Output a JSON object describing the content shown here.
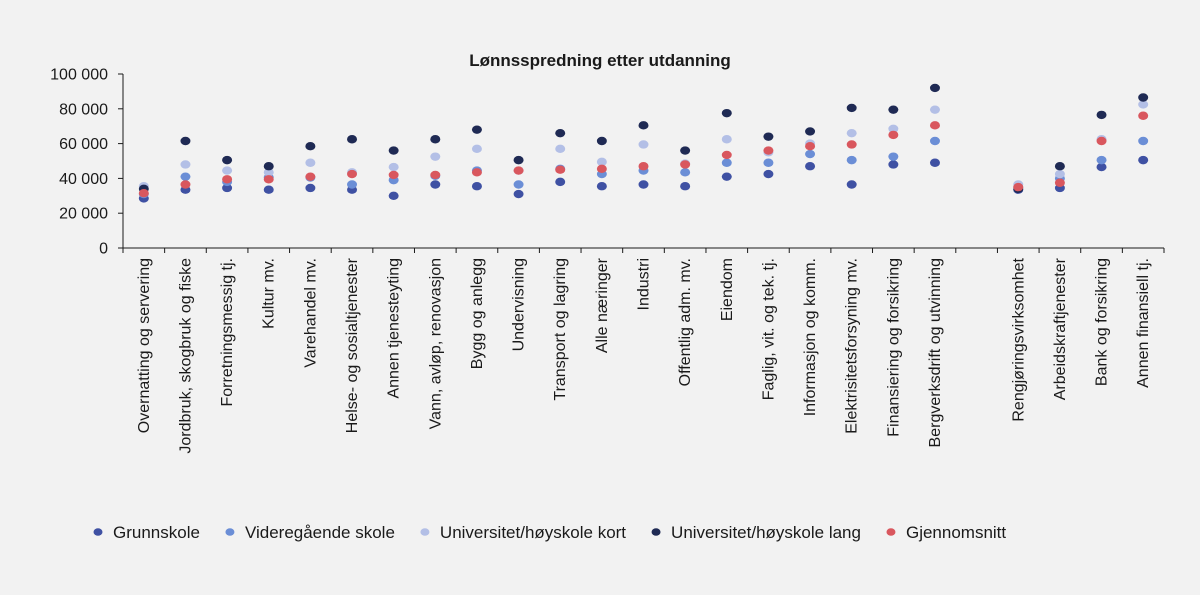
{
  "chart_data": {
    "type": "scatter",
    "title": "Lønnsspredning etter utdanning",
    "xlabel": "",
    "ylabel": "",
    "ylim": [
      0,
      100000
    ],
    "yticks": [
      0,
      20000,
      40000,
      60000,
      80000,
      100000
    ],
    "ytick_labels": [
      "0",
      "20 000",
      "40 000",
      "60 000",
      "80 000",
      "100 000"
    ],
    "grid": false,
    "legend_position": "bottom",
    "categories": [
      "Overnatting og servering",
      "Jordbruk, skogbruk og fiske",
      "Forretningsmessig tj.",
      "Kultur mv.",
      "Varehandel mv.",
      "Helse- og sosialtjenester",
      "Annen tjenesteyting",
      "Vann, avløp, renovasjon",
      "Bygg og anlegg",
      "Undervisning",
      "Transport og lagring",
      "Alle næringer",
      "Industri",
      "Offentlig adm. mv.",
      "Eiendom",
      "Faglig, vit. og tek. tj.",
      "Informasjon og komm.",
      "Elektrisitetsforsyning mv.",
      "Finansiering og forsikring",
      "Bergverksdrift og utvinning",
      "",
      "Rengjøringsvirksomhet",
      "Arbeidskraftjenester",
      "Bank og forsikring",
      "Annen finansiell tj."
    ],
    "series": [
      {
        "name": "Grunnskole",
        "color": "#3f51a3",
        "values": [
          28500,
          33500,
          34500,
          33500,
          34500,
          33500,
          30000,
          36500,
          35500,
          31000,
          38000,
          35500,
          36500,
          35500,
          41000,
          42500,
          47000,
          36500,
          48000,
          49000,
          null,
          33500,
          34500,
          46500,
          50500
        ]
      },
      {
        "name": "Videregående skole",
        "color": "#6b8ed6",
        "values": [
          31000,
          41000,
          38000,
          40500,
          40500,
          36500,
          39000,
          41500,
          44500,
          36500,
          45500,
          42500,
          44500,
          43500,
          49000,
          49000,
          54000,
          50500,
          52500,
          61500,
          null,
          35000,
          40000,
          50500,
          61500
        ]
      },
      {
        "name": "Universitet/høyskole kort",
        "color": "#b3bfe6",
        "values": [
          35500,
          48000,
          44500,
          43500,
          49000,
          43500,
          46500,
          52500,
          57000,
          44500,
          57000,
          49500,
          59500,
          48500,
          62500,
          55000,
          60000,
          66000,
          68500,
          79500,
          null,
          36500,
          42500,
          62500,
          82500
        ]
      },
      {
        "name": "Universitet/høyskole lang",
        "color": "#1f2a54",
        "values": [
          34000,
          61500,
          50500,
          47000,
          58500,
          62500,
          56000,
          62500,
          68000,
          50500,
          66000,
          61500,
          70500,
          56000,
          77500,
          64000,
          67000,
          80500,
          79500,
          92000,
          null,
          34000,
          47000,
          76500,
          86500
        ]
      },
      {
        "name": "Gjennomsnitt",
        "color": "#d9575e",
        "values": [
          31500,
          36500,
          39500,
          39500,
          41000,
          42500,
          42000,
          42000,
          43500,
          44500,
          45000,
          45500,
          47000,
          48000,
          53500,
          56000,
          58500,
          59500,
          65000,
          70500,
          null,
          35000,
          37500,
          61500,
          76000
        ]
      }
    ]
  }
}
